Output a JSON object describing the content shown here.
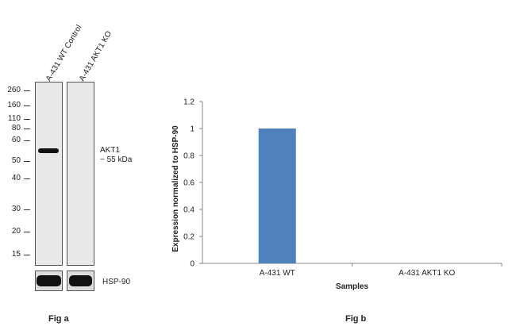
{
  "fig_a": {
    "label": "Fig a",
    "lanes": [
      "A-431 WT Control",
      "A-431 AKT1 KO"
    ],
    "markers": [
      "260",
      "160",
      "110",
      "80",
      "60",
      "50",
      "40",
      "30",
      "20",
      "15"
    ],
    "band_label_line1": "AKT1",
    "band_label_line2": "~ 55 kDa",
    "loading_control": "HSP-90"
  },
  "fig_b": {
    "label": "Fig b"
  },
  "chart_data": {
    "type": "bar",
    "categories": [
      "A-431 WT",
      "A-431 AKT1 KO"
    ],
    "values": [
      1.0,
      0.0
    ],
    "xlabel": "Samples",
    "ylabel": "Expression  normalized to HSP-90",
    "ylim": [
      0,
      1.2
    ],
    "yticks": [
      "0",
      "0.2",
      "0.4",
      "0.6",
      "0.8",
      "1",
      "1.2"
    ],
    "bar_color": "#4f81bd",
    "grid": false,
    "legend": false
  }
}
